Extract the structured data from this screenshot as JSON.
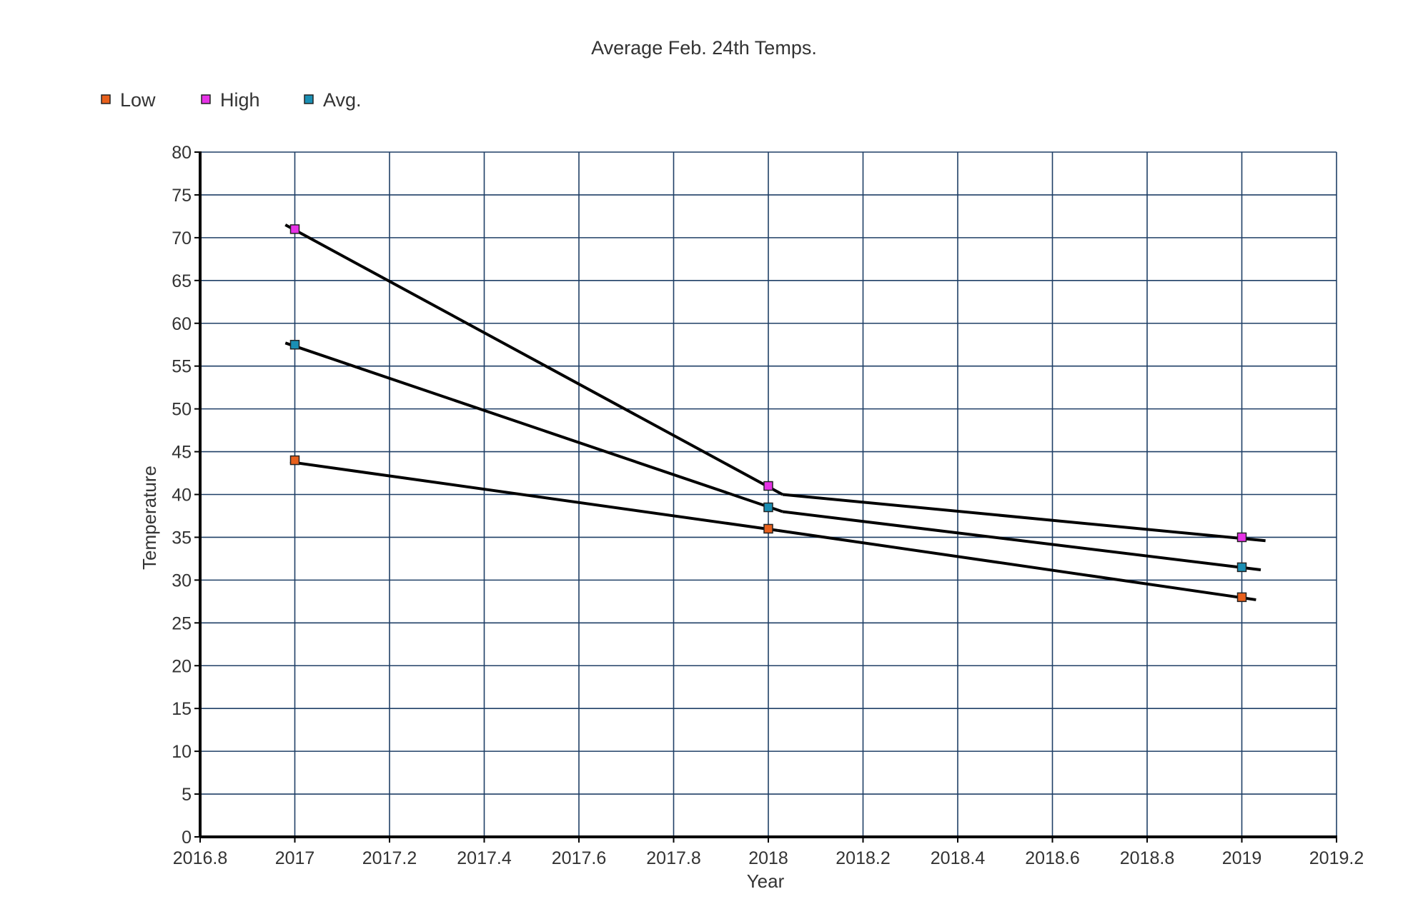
{
  "chart_data": {
    "type": "scatter",
    "title": "Average Feb. 24th Temps.",
    "xlabel": "Year",
    "ylabel": "Temperature",
    "xlim": [
      2016.8,
      2019.2
    ],
    "ylim": [
      0,
      80
    ],
    "x_ticks": [
      "2016.8",
      "2017",
      "2017.2",
      "2017.4",
      "2017.6",
      "2017.8",
      "2018",
      "2018.2",
      "2018.4",
      "2018.6",
      "2018.8",
      "2019",
      "2019.2"
    ],
    "y_ticks": [
      "0",
      "5",
      "10",
      "15",
      "20",
      "25",
      "30",
      "35",
      "40",
      "45",
      "50",
      "55",
      "60",
      "65",
      "70",
      "75",
      "80"
    ],
    "grid": true,
    "legend": "top-left",
    "trendlines": true,
    "x": [
      2017,
      2018,
      2019
    ],
    "series": [
      {
        "name": "Low",
        "color": "#e8601c",
        "values": [
          44,
          36,
          28
        ]
      },
      {
        "name": "High",
        "color": "#e632e6",
        "values": [
          71,
          41,
          35
        ]
      },
      {
        "name": "Avg.",
        "color": "#1a8fb4",
        "values": [
          57.5,
          38.5,
          31.5
        ]
      }
    ],
    "trendline_segments": [
      {
        "x": [
          2016.98,
          2018.03
        ],
        "y": [
          71.5,
          40
        ]
      },
      {
        "x": [
          2018.03,
          2019.05
        ],
        "y": [
          40,
          34.6
        ]
      },
      {
        "x": [
          2016.98,
          2018.03
        ],
        "y": [
          57.7,
          38
        ]
      },
      {
        "x": [
          2018.03,
          2019.04
        ],
        "y": [
          38,
          31.2
        ]
      },
      {
        "x": [
          2016.99,
          2018.02
        ],
        "y": [
          43.8,
          35.8
        ]
      },
      {
        "x": [
          2018.02,
          2019.03
        ],
        "y": [
          35.8,
          27.7
        ]
      }
    ]
  }
}
